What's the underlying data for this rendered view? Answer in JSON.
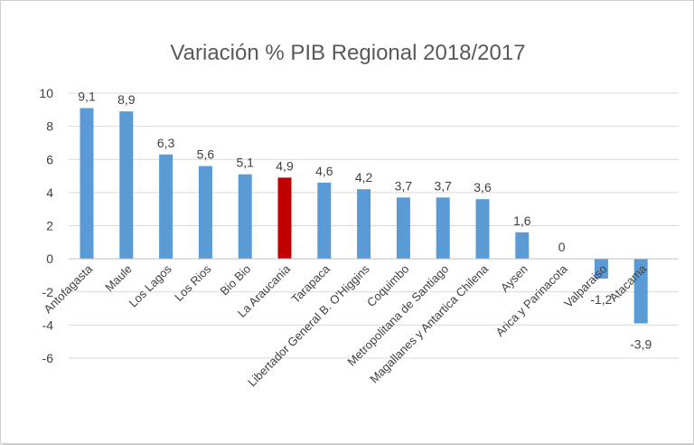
{
  "chart_data": {
    "type": "bar",
    "title": "Variación % PIB Regional 2018/2017",
    "xlabel": "",
    "ylabel": "",
    "ylim": [
      -6,
      10
    ],
    "yticks": [
      10,
      8,
      6,
      4,
      2,
      0,
      -2,
      -4,
      -6
    ],
    "grid": true,
    "legend": "none",
    "categories": [
      "Antofagasta",
      "Maule",
      "Los Lagos",
      "Los Rios",
      "Bio Bio",
      "La Araucania",
      "Tarapaca",
      "Libertador General B. O'Higgins",
      "Coquimbo",
      "Metropolitana de Santiago",
      "Magallanes y Antartica Chilena",
      "Aysen",
      "Arica y Parinacota",
      "Valparaiso",
      "Atacama"
    ],
    "values": [
      9.1,
      8.9,
      6.3,
      5.6,
      5.1,
      4.9,
      4.6,
      4.2,
      3.7,
      3.7,
      3.6,
      1.6,
      0,
      -1.2,
      -3.9
    ],
    "value_labels": [
      "9,1",
      "8,9",
      "6,3",
      "5,6",
      "5,1",
      "4,9",
      "4,6",
      "4,2",
      "3,7",
      "3,7",
      "3,6",
      "1,6",
      "0",
      "-1,2",
      "-3,9"
    ],
    "colors": {
      "default": "#5b9bd5",
      "highlight": "#c00000",
      "highlight_category": "La Araucania",
      "grid": "#d9d9d9",
      "axis": "#bfbfbf"
    }
  }
}
